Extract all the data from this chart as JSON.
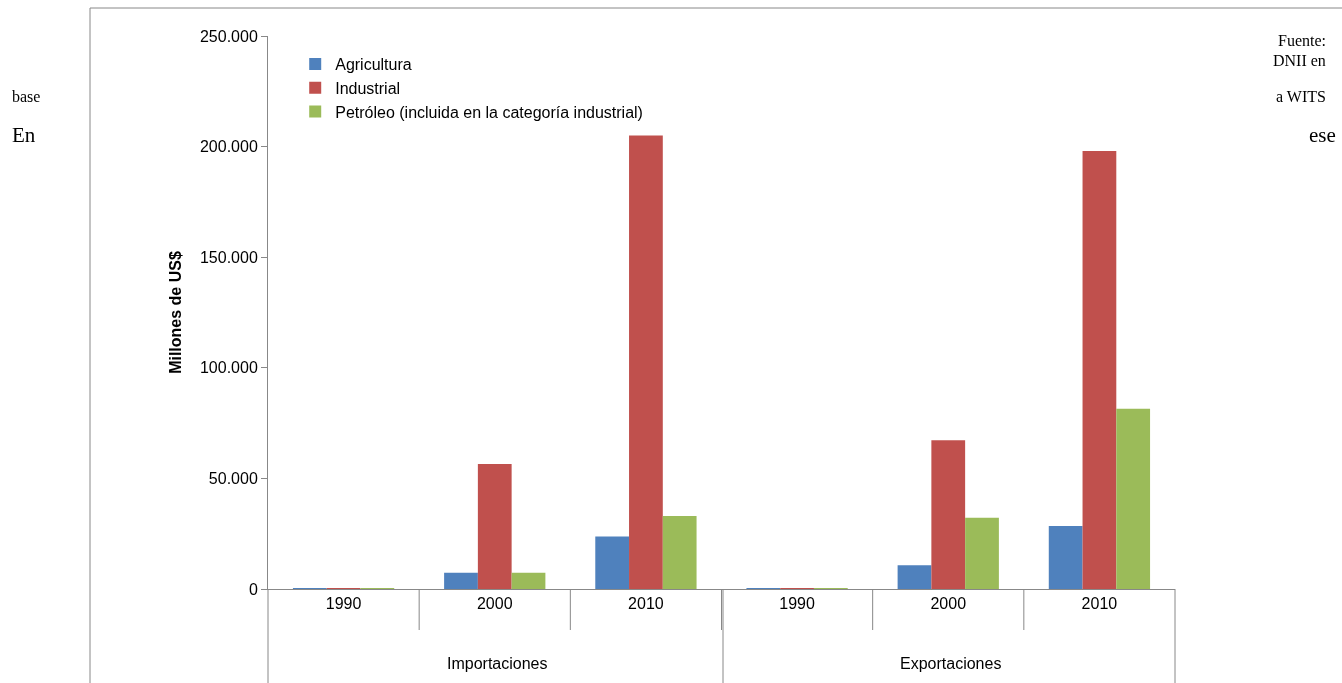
{
  "chart_data": {
    "type": "bar",
    "ylabel": "Millones de US$",
    "categories": [
      "1990",
      "2000",
      "2010",
      "1990",
      "2000",
      "2010"
    ],
    "series": [
      {
        "name": "Agricultura",
        "color": "#4f81bd",
        "values": [
          500,
          7300,
          23700,
          500,
          10700,
          28500
        ]
      },
      {
        "name": "Industrial",
        "color": "#c0504d",
        "values": [
          500,
          56500,
          205000,
          500,
          67300,
          198000
        ]
      },
      {
        "name": "Petróleo (incluida en la categoría industrial)",
        "color": "#9bbb59",
        "values": [
          500,
          7300,
          33000,
          500,
          32200,
          81500
        ]
      }
    ],
    "ylim": [
      0,
      250000
    ],
    "yticks": [
      {
        "value": 0,
        "label": "0"
      },
      {
        "value": 50000,
        "label": "50.000"
      },
      {
        "value": 100000,
        "label": "100.000"
      },
      {
        "value": 150000,
        "label": "150.000"
      },
      {
        "value": 200000,
        "label": "200.000"
      },
      {
        "value": 250000,
        "label": "250.000"
      }
    ],
    "grid": false,
    "legend": "top left",
    "annotations": [
      "Importaciones",
      "Exportaciones",
      "Fuente:",
      "DNII en",
      "base",
      "a WITS",
      "En",
      "ese"
    ]
  }
}
